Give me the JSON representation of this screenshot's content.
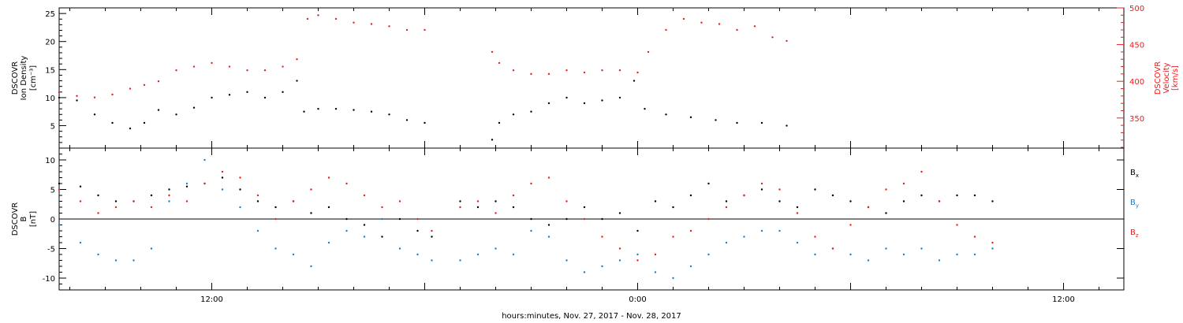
{
  "chart_data": [
    {
      "type": "scatter",
      "title": "",
      "x_axis": {
        "unit": "hours since Nov. 27, 2017 00:00",
        "range": [
          7.7,
          37.7
        ],
        "tick_labels": [
          {
            "x": 12,
            "label": "12:00"
          },
          {
            "x": 24,
            "label": "0:00"
          },
          {
            "x": 36,
            "label": "12:00"
          }
        ]
      },
      "left_axis": {
        "label_lines": [
          "DSCOVR",
          "Ion Density",
          "[cm⁻³]"
        ],
        "range": [
          1,
          26
        ],
        "ticks": [
          5,
          10,
          15,
          20,
          25
        ],
        "color": "#000000"
      },
      "right_axis": {
        "label_lines": [
          "DSCOVR",
          "Velocity",
          "[km/s]"
        ],
        "range": [
          309,
          500
        ],
        "ticks": [
          350,
          400,
          450,
          500
        ],
        "color": "#ee1c1c"
      },
      "series": [
        {
          "name": "Ion Density",
          "axis": "left",
          "color": "#000000",
          "points": [
            [
              7.7,
              10
            ],
            [
              8.2,
              9.5
            ],
            [
              8.7,
              7
            ],
            [
              9.2,
              5.5
            ],
            [
              9.7,
              4.5
            ],
            [
              10.1,
              5.5
            ],
            [
              10.5,
              7.8
            ],
            [
              11.0,
              7
            ],
            [
              11.5,
              8.2
            ],
            [
              12.0,
              10
            ],
            [
              12.5,
              10.5
            ],
            [
              13.0,
              11
            ],
            [
              13.5,
              10
            ],
            [
              14.0,
              11
            ],
            [
              14.4,
              13
            ],
            [
              14.6,
              7.5
            ],
            [
              15.0,
              8
            ],
            [
              15.5,
              8
            ],
            [
              16.0,
              7.8
            ],
            [
              16.5,
              7.5
            ],
            [
              17.0,
              7
            ],
            [
              17.5,
              6
            ],
            [
              18.0,
              5.5
            ],
            [
              19.9,
              2.5
            ],
            [
              20.1,
              5.5
            ],
            [
              20.5,
              7
            ],
            [
              21.0,
              7.5
            ],
            [
              21.5,
              9
            ],
            [
              22.0,
              10
            ],
            [
              22.5,
              9
            ],
            [
              23.0,
              9.5
            ],
            [
              23.5,
              10
            ],
            [
              23.9,
              13
            ],
            [
              24.2,
              8
            ],
            [
              24.8,
              7
            ],
            [
              25.5,
              6.5
            ],
            [
              26.2,
              6
            ],
            [
              26.8,
              5.5
            ],
            [
              27.5,
              5.5
            ],
            [
              28.2,
              5
            ]
          ]
        },
        {
          "name": "Velocity",
          "axis": "right",
          "color": "#ee1c1c",
          "points": [
            [
              7.7,
              385
            ],
            [
              8.2,
              380
            ],
            [
              8.7,
              378
            ],
            [
              9.2,
              382
            ],
            [
              9.7,
              390
            ],
            [
              10.1,
              395
            ],
            [
              10.5,
              400
            ],
            [
              11.0,
              415
            ],
            [
              11.5,
              420
            ],
            [
              12.0,
              425
            ],
            [
              12.5,
              420
            ],
            [
              13.0,
              415
            ],
            [
              13.5,
              415
            ],
            [
              14.0,
              420
            ],
            [
              14.4,
              430
            ],
            [
              14.7,
              485
            ],
            [
              15.0,
              490
            ],
            [
              15.5,
              485
            ],
            [
              16.0,
              480
            ],
            [
              16.5,
              478
            ],
            [
              17.0,
              475
            ],
            [
              17.5,
              470
            ],
            [
              18.0,
              470
            ],
            [
              19.9,
              440
            ],
            [
              20.1,
              425
            ],
            [
              20.5,
              415
            ],
            [
              21.0,
              410
            ],
            [
              21.5,
              410
            ],
            [
              22.0,
              415
            ],
            [
              22.5,
              412
            ],
            [
              23.0,
              415
            ],
            [
              23.5,
              415
            ],
            [
              24.0,
              412
            ],
            [
              24.3,
              440
            ],
            [
              24.8,
              470
            ],
            [
              25.3,
              485
            ],
            [
              25.8,
              480
            ],
            [
              26.3,
              478
            ],
            [
              26.8,
              470
            ],
            [
              27.3,
              475
            ],
            [
              27.8,
              460
            ],
            [
              28.2,
              455
            ]
          ]
        }
      ]
    },
    {
      "type": "scatter",
      "title": "",
      "x_axis": {
        "label": "hours:minutes, Nov. 27, 2017 - Nov. 28, 2017",
        "unit": "hours since Nov. 27, 2017 00:00",
        "range": [
          7.7,
          37.7
        ],
        "tick_labels": [
          {
            "x": 12,
            "label": "12:00"
          },
          {
            "x": 24,
            "label": "0:00"
          },
          {
            "x": 36,
            "label": "12:00"
          }
        ]
      },
      "y_axis": {
        "label_lines": [
          "DSCOVR",
          "B",
          "[nT]"
        ],
        "range": [
          -12,
          12
        ],
        "ticks": [
          -10,
          -5,
          0,
          5,
          10
        ],
        "zero_line": true
      },
      "series": [
        {
          "name": "Bx",
          "color": "#000000",
          "points": [
            [
              7.7,
              6
            ],
            [
              8.3,
              5.5
            ],
            [
              8.8,
              4
            ],
            [
              9.3,
              3
            ],
            [
              9.8,
              3
            ],
            [
              10.3,
              4
            ],
            [
              10.8,
              5
            ],
            [
              11.3,
              5.5
            ],
            [
              11.8,
              6
            ],
            [
              12.3,
              7
            ],
            [
              12.8,
              5
            ],
            [
              13.3,
              3
            ],
            [
              13.8,
              2
            ],
            [
              14.3,
              3
            ],
            [
              14.8,
              1
            ],
            [
              15.3,
              2
            ],
            [
              15.8,
              0
            ],
            [
              16.3,
              -1
            ],
            [
              16.8,
              -3
            ],
            [
              17.3,
              0
            ],
            [
              17.8,
              -2
            ],
            [
              18.2,
              -3
            ],
            [
              19.0,
              3
            ],
            [
              19.5,
              2
            ],
            [
              20.0,
              3
            ],
            [
              20.5,
              2
            ],
            [
              21.0,
              0
            ],
            [
              21.5,
              -1
            ],
            [
              22.0,
              0
            ],
            [
              22.5,
              2
            ],
            [
              23.0,
              0
            ],
            [
              23.5,
              1
            ],
            [
              24.0,
              -2
            ],
            [
              24.5,
              3
            ],
            [
              25.0,
              2
            ],
            [
              25.5,
              4
            ],
            [
              26.0,
              6
            ],
            [
              26.5,
              3
            ],
            [
              27.0,
              4
            ],
            [
              27.5,
              5
            ],
            [
              28.0,
              3
            ],
            [
              28.5,
              2
            ],
            [
              29.0,
              5
            ],
            [
              29.5,
              4
            ],
            [
              30.0,
              3
            ],
            [
              30.5,
              2
            ],
            [
              31.0,
              1
            ],
            [
              31.5,
              3
            ],
            [
              32.0,
              4
            ],
            [
              32.5,
              3
            ],
            [
              33.0,
              4
            ],
            [
              33.5,
              4
            ],
            [
              34.0,
              3
            ]
          ]
        },
        {
          "name": "By",
          "color": "#1e7ec8",
          "points": [
            [
              7.7,
              -1
            ],
            [
              8.3,
              -4
            ],
            [
              8.8,
              -6
            ],
            [
              9.3,
              -7
            ],
            [
              9.8,
              -7
            ],
            [
              10.3,
              -5
            ],
            [
              10.8,
              3
            ],
            [
              11.3,
              6
            ],
            [
              11.8,
              10
            ],
            [
              12.3,
              5
            ],
            [
              12.8,
              2
            ],
            [
              13.3,
              -2
            ],
            [
              13.8,
              -5
            ],
            [
              14.3,
              -6
            ],
            [
              14.8,
              -8
            ],
            [
              15.3,
              -4
            ],
            [
              15.8,
              -2
            ],
            [
              16.3,
              -3
            ],
            [
              16.8,
              0
            ],
            [
              17.3,
              -5
            ],
            [
              17.8,
              -6
            ],
            [
              18.2,
              -7
            ],
            [
              19.0,
              -7
            ],
            [
              19.5,
              -6
            ],
            [
              20.0,
              -5
            ],
            [
              20.5,
              -6
            ],
            [
              21.0,
              -2
            ],
            [
              21.5,
              -3
            ],
            [
              22.0,
              -7
            ],
            [
              22.5,
              -9
            ],
            [
              23.0,
              -8
            ],
            [
              23.5,
              -7
            ],
            [
              24.0,
              -6
            ],
            [
              24.5,
              -9
            ],
            [
              25.0,
              -10
            ],
            [
              25.5,
              -8
            ],
            [
              26.0,
              -6
            ],
            [
              26.5,
              -4
            ],
            [
              27.0,
              -3
            ],
            [
              27.5,
              -2
            ],
            [
              28.0,
              -2
            ],
            [
              28.5,
              -4
            ],
            [
              29.0,
              -6
            ],
            [
              29.5,
              -5
            ],
            [
              30.0,
              -6
            ],
            [
              30.5,
              -7
            ],
            [
              31.0,
              -5
            ],
            [
              31.5,
              -6
            ],
            [
              32.0,
              -5
            ],
            [
              32.5,
              -7
            ],
            [
              33.0,
              -6
            ],
            [
              33.5,
              -6
            ],
            [
              34.0,
              -5
            ]
          ]
        },
        {
          "name": "Bz",
          "color": "#ee1c1c",
          "points": [
            [
              7.7,
              5
            ],
            [
              8.3,
              3
            ],
            [
              8.8,
              1
            ],
            [
              9.3,
              2
            ],
            [
              9.8,
              3
            ],
            [
              10.3,
              2
            ],
            [
              10.8,
              4
            ],
            [
              11.3,
              3
            ],
            [
              11.8,
              6
            ],
            [
              12.3,
              8
            ],
            [
              12.8,
              7
            ],
            [
              13.3,
              4
            ],
            [
              13.8,
              0
            ],
            [
              14.3,
              3
            ],
            [
              14.8,
              5
            ],
            [
              15.3,
              7
            ],
            [
              15.8,
              6
            ],
            [
              16.3,
              4
            ],
            [
              16.8,
              2
            ],
            [
              17.3,
              3
            ],
            [
              17.8,
              0
            ],
            [
              18.2,
              -2
            ],
            [
              19.0,
              2
            ],
            [
              19.5,
              3
            ],
            [
              20.0,
              1
            ],
            [
              20.5,
              4
            ],
            [
              21.0,
              6
            ],
            [
              21.5,
              7
            ],
            [
              22.0,
              3
            ],
            [
              22.5,
              0
            ],
            [
              23.0,
              -3
            ],
            [
              23.5,
              -5
            ],
            [
              24.0,
              -7
            ],
            [
              24.5,
              -6
            ],
            [
              25.0,
              -3
            ],
            [
              25.5,
              -2
            ],
            [
              26.0,
              0
            ],
            [
              26.5,
              2
            ],
            [
              27.0,
              4
            ],
            [
              27.5,
              6
            ],
            [
              28.0,
              5
            ],
            [
              28.5,
              1
            ],
            [
              29.0,
              -3
            ],
            [
              29.5,
              -5
            ],
            [
              30.0,
              -1
            ],
            [
              30.5,
              2
            ],
            [
              31.0,
              5
            ],
            [
              31.5,
              6
            ],
            [
              32.0,
              8
            ],
            [
              32.5,
              3
            ],
            [
              33.0,
              -1
            ],
            [
              33.5,
              -3
            ],
            [
              34.0,
              -4
            ]
          ]
        }
      ],
      "legend": {
        "placement": "right",
        "entries": [
          {
            "letter": "B",
            "subscript": "x",
            "color": "#000000"
          },
          {
            "letter": "B",
            "subscript": "y",
            "color": "#1e7ec8"
          },
          {
            "letter": "B",
            "subscript": "z",
            "color": "#ee1c1c"
          }
        ]
      }
    }
  ]
}
